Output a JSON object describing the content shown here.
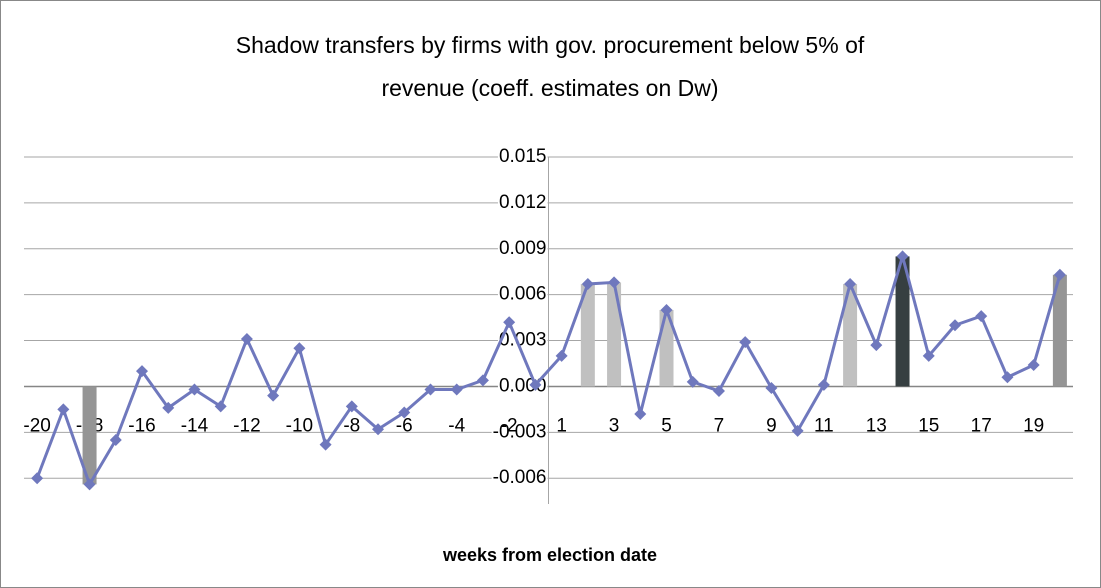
{
  "chart_data": {
    "type": "combo",
    "title": [
      "Shadow transfers by firms with gov. procurement below 5% of",
      "revenue (coeff. estimates on Dw)"
    ],
    "x_label": "weeks from election date",
    "categories": [
      -20,
      null,
      -18,
      null,
      -16,
      null,
      -14,
      null,
      -12,
      null,
      -10,
      null,
      -8,
      null,
      -6,
      null,
      -4,
      null,
      -2,
      null,
      1,
      null,
      3,
      null,
      5,
      null,
      7,
      null,
      9,
      null,
      11,
      null,
      13,
      null,
      15,
      null,
      17,
      null,
      19,
      null
    ],
    "series": [
      {
        "kind": "bar",
        "color": "#959595",
        "values": [
          null,
          null,
          -0.0064,
          null,
          null,
          null,
          null,
          null,
          null,
          null,
          null,
          null,
          null,
          null,
          null,
          null,
          null,
          null,
          null,
          null,
          null,
          null,
          null,
          null,
          null,
          null,
          null,
          null,
          null,
          null,
          null,
          null,
          null,
          null,
          null,
          null,
          null,
          null,
          null,
          0.0073
        ]
      },
      {
        "kind": "bar",
        "color": "#c0c0c0",
        "values": [
          null,
          null,
          null,
          null,
          null,
          null,
          null,
          null,
          null,
          null,
          null,
          null,
          null,
          null,
          null,
          null,
          null,
          null,
          null,
          null,
          null,
          0.0067,
          0.0068,
          null,
          0.005,
          null,
          null,
          null,
          null,
          null,
          null,
          0.0067,
          null,
          null,
          null,
          null,
          null,
          null,
          null,
          null
        ]
      },
      {
        "kind": "bar",
        "color": "#363f41",
        "values": [
          null,
          null,
          null,
          null,
          null,
          null,
          null,
          null,
          null,
          null,
          null,
          null,
          null,
          null,
          null,
          null,
          null,
          null,
          null,
          null,
          null,
          null,
          null,
          null,
          null,
          null,
          null,
          null,
          null,
          null,
          null,
          null,
          null,
          0.0085,
          null,
          null,
          null,
          null,
          null,
          null
        ]
      },
      {
        "kind": "line",
        "color": "#6f78bd",
        "values": [
          -0.006,
          -0.0015,
          -0.0064,
          -0.0035,
          0.001,
          -0.0014,
          -0.0002,
          -0.0013,
          0.0031,
          -0.0006,
          0.0025,
          -0.0038,
          -0.0013,
          -0.0028,
          -0.0017,
          -0.0002,
          -0.0002,
          0.0004,
          0.0042,
          0.0001,
          0.002,
          0.0067,
          0.0068,
          -0.0018,
          0.005,
          0.0003,
          -0.0003,
          0.0029,
          -0.0001,
          -0.0029,
          0.0001,
          0.0067,
          0.0027,
          0.0085,
          0.002,
          0.004,
          0.0046,
          0.0006,
          0.0014,
          0.0073
        ]
      }
    ],
    "ylim": [
      -0.0069,
      0.015
    ],
    "yticks": [
      -0.006,
      -0.003,
      {
        "value": 0,
        "label": "0.000"
      },
      0.003,
      0.006,
      0.009,
      0.012,
      0.015
    ],
    "grid": true
  }
}
